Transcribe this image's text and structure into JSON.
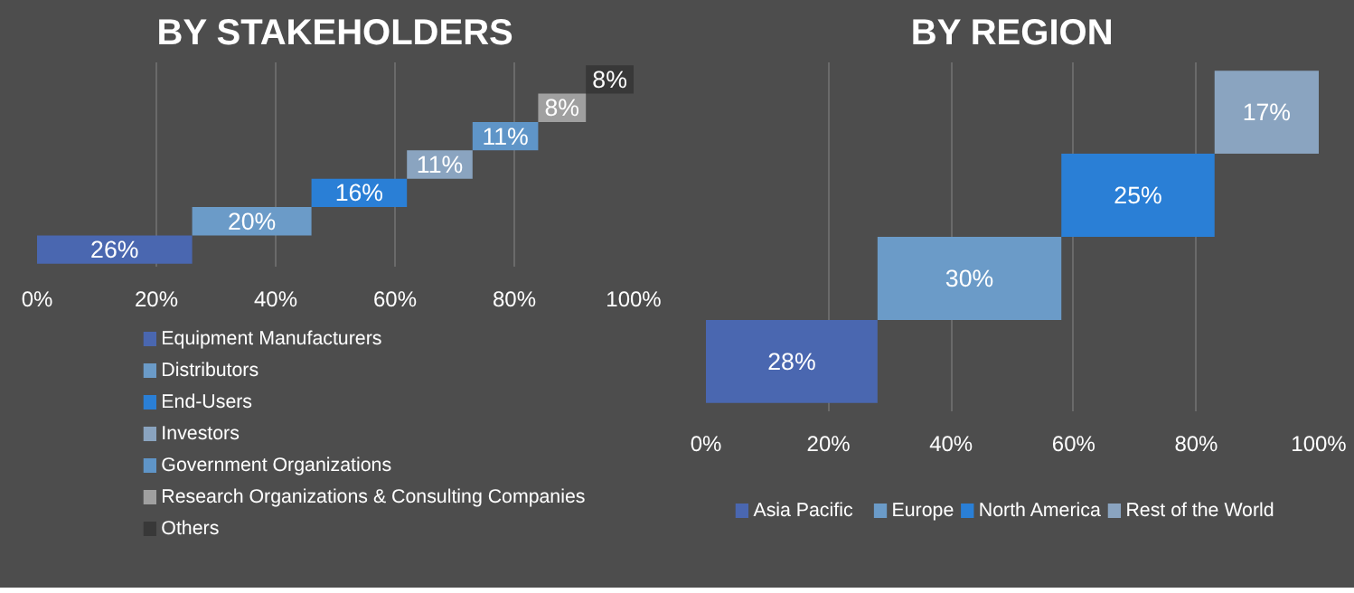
{
  "chart_data": [
    {
      "type": "bar",
      "title": "BY STAKEHOLDERS",
      "orientation": "horizontal",
      "categories": [
        null,
        null,
        null,
        null,
        null,
        null,
        null
      ],
      "series": [
        {
          "name": "Equipment Manufacturers",
          "color": "#4a67b0",
          "values": [
            null,
            null,
            null,
            null,
            null,
            null,
            26
          ],
          "base": [
            null,
            null,
            null,
            null,
            null,
            null,
            0
          ],
          "value_labels": [
            null,
            null,
            null,
            null,
            null,
            null,
            "26%"
          ]
        },
        {
          "name": "Distributors",
          "color": "#6b9bc8",
          "values": [
            null,
            null,
            null,
            null,
            null,
            20,
            null
          ],
          "base": [
            null,
            null,
            null,
            null,
            null,
            26,
            null
          ],
          "value_labels": [
            null,
            null,
            null,
            null,
            null,
            "20%",
            null
          ]
        },
        {
          "name": "End-Users",
          "color": "#2a7fd6",
          "values": [
            null,
            null,
            null,
            null,
            16,
            null,
            null
          ],
          "base": [
            null,
            null,
            null,
            null,
            46,
            null,
            null
          ],
          "value_labels": [
            null,
            null,
            null,
            null,
            "16%",
            null,
            null
          ]
        },
        {
          "name": "Investors",
          "color": "#8aa4c0",
          "values": [
            null,
            null,
            null,
            11,
            null,
            null,
            null
          ],
          "base": [
            null,
            null,
            null,
            62,
            null,
            null,
            null
          ],
          "value_labels": [
            null,
            null,
            null,
            "11%",
            null,
            null,
            null
          ]
        },
        {
          "name": "Government Organizations",
          "color": "#5f95c8",
          "values": [
            null,
            null,
            11,
            null,
            null,
            null,
            null
          ],
          "base": [
            null,
            null,
            73,
            null,
            null,
            null,
            null
          ],
          "value_labels": [
            null,
            null,
            "11%",
            null,
            null,
            null,
            null
          ]
        },
        {
          "name": "Research Organizations & Consulting Companies",
          "color": "#a0a0a0",
          "values": [
            null,
            8,
            null,
            null,
            null,
            null,
            null
          ],
          "base": [
            null,
            84,
            null,
            null,
            null,
            null,
            null
          ],
          "value_labels": [
            null,
            "8%",
            null,
            null,
            null,
            null,
            null
          ]
        },
        {
          "name": "Others",
          "color": "#383838",
          "values": [
            8,
            null,
            null,
            null,
            null,
            null,
            null
          ],
          "base": [
            92,
            null,
            null,
            null,
            null,
            null,
            null
          ],
          "value_labels": [
            "8%",
            null,
            null,
            null,
            null,
            null,
            null
          ]
        }
      ],
      "xlim": [
        0,
        100
      ],
      "xticks": [
        {
          "value": 0,
          "label": "0%"
        },
        {
          "value": 20,
          "label": "20%"
        },
        {
          "value": 40,
          "label": "40%"
        },
        {
          "value": 60,
          "label": "60%"
        },
        {
          "value": 80,
          "label": "80%"
        },
        {
          "value": 100,
          "label": "100%"
        }
      ],
      "grid": "x",
      "legend": "bottom",
      "tick_labels": "x"
    },
    {
      "type": "bar",
      "title": "BY REGION",
      "orientation": "horizontal",
      "categories": [
        null,
        null,
        null,
        null
      ],
      "series": [
        {
          "name": "Asia Pacific",
          "color": "#4a67b0",
          "values": [
            null,
            null,
            null,
            28
          ],
          "base": [
            null,
            null,
            null,
            0
          ],
          "value_labels": [
            null,
            null,
            null,
            "28%"
          ]
        },
        {
          "name": "Europe",
          "color": "#6b9bc8",
          "values": [
            null,
            null,
            30,
            null
          ],
          "base": [
            null,
            null,
            28,
            null
          ],
          "value_labels": [
            null,
            null,
            "30%",
            null
          ]
        },
        {
          "name": "North America",
          "color": "#2a7fd6",
          "values": [
            null,
            25,
            null,
            null
          ],
          "base": [
            null,
            58,
            null,
            null
          ],
          "value_labels": [
            null,
            "25%",
            null,
            null
          ]
        },
        {
          "name": "Rest of the World",
          "color": "#8aa4c0",
          "values": [
            17,
            null,
            null,
            null
          ],
          "base": [
            83,
            null,
            null,
            null
          ],
          "value_labels": [
            "17%",
            null,
            null,
            null
          ]
        }
      ],
      "xlim": [
        0,
        100
      ],
      "xticks": [
        {
          "value": 0,
          "label": "0%"
        },
        {
          "value": 20,
          "label": "20%"
        },
        {
          "value": 40,
          "label": "40%"
        },
        {
          "value": 60,
          "label": "60%"
        },
        {
          "value": 80,
          "label": "80%"
        },
        {
          "value": 100,
          "label": "100%"
        }
      ],
      "grid": "x",
      "legend": "bottom",
      "tick_labels": "x"
    }
  ]
}
